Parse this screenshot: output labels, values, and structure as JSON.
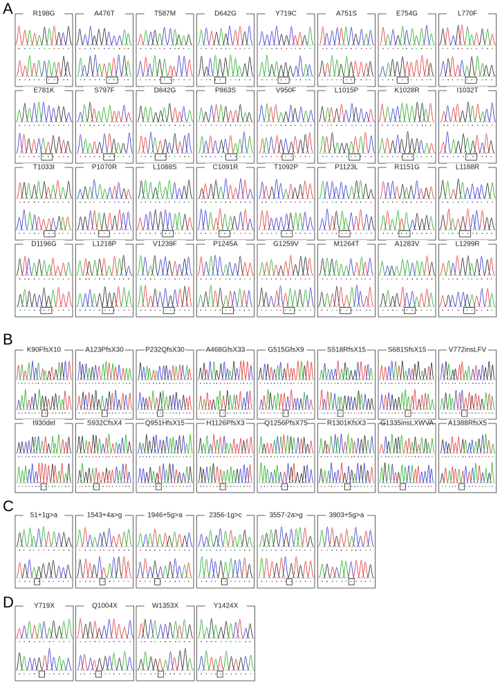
{
  "sections": [
    {
      "label": "A",
      "panels": [
        "R198G",
        "A476T",
        "T587M",
        "D642G",
        "Y719C",
        "A751S",
        "E754G",
        "L770F",
        "E781K",
        "S797F",
        "D842G",
        "P863S",
        "V950F",
        "L1015P",
        "K1028R",
        "I1032T",
        "T1033I",
        "P1070R",
        "L1088S",
        "C1091R",
        "T1092P",
        "P1123L",
        "R1151G",
        "L1188R",
        "D1196G",
        "L1218P",
        "V1239F",
        "P1245A",
        "G1259V",
        "M1264T",
        "A1283V",
        "L1299R"
      ]
    },
    {
      "label": "B",
      "panels": [
        "K90FfsX10",
        "A123PfsX30",
        "P232QfsX30",
        "A468GfsX33",
        "G515GfsX9",
        "S518RfsX15",
        "S681SfsX15",
        "V772insLFV",
        "I930del",
        "S932CfsX4",
        "Q951HfsX15",
        "H1126PfsX3",
        "Q1256PfsX75",
        "R1301KfsX3",
        "G1335insLXWVA",
        "A1388RfsX5"
      ]
    },
    {
      "label": "C",
      "panels": [
        "51+1g>a",
        "1543+4a>g",
        "1946+5g>a",
        "2356-1g>c",
        "3557-2a>g",
        "3903+5g>a"
      ]
    },
    {
      "label": "D",
      "panels": [
        "Y719X",
        "Q1004X",
        "W1353X",
        "Y1424X"
      ]
    }
  ]
}
